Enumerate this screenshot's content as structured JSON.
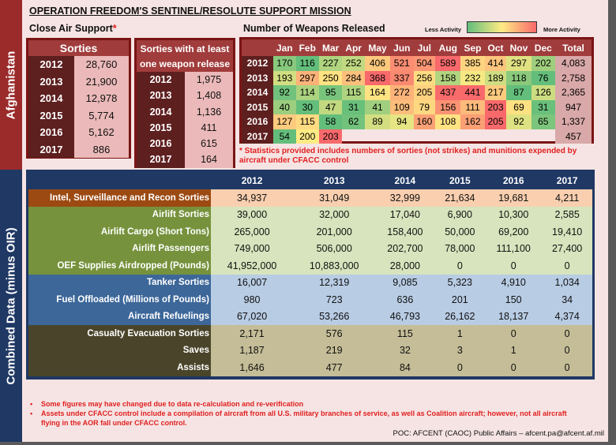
{
  "sidebar": {
    "top_label": "Afghanistan",
    "bottom_label": "Combined Data (minus OIR)"
  },
  "title": "OPERATION FREEDOM'S SENTINEL/RESOLUTE SUPPORT MISSION",
  "close_air_support": {
    "label": "Close Air Support",
    "star": "*"
  },
  "sorties": {
    "header": "Sorties",
    "rows": [
      [
        "2012",
        "28,760"
      ],
      [
        "2013",
        "21,900"
      ],
      [
        "2014",
        "12,978"
      ],
      [
        "2015",
        "5,774"
      ],
      [
        "2016",
        "5,162"
      ],
      [
        "2017",
        "886"
      ]
    ]
  },
  "weapon_sorties": {
    "header": "Sorties with at least one weapon release",
    "rows": [
      [
        "2012",
        "1,975"
      ],
      [
        "2013",
        "1,408"
      ],
      [
        "2014",
        "1,136"
      ],
      [
        "2015",
        "411"
      ],
      [
        "2016",
        "615"
      ],
      [
        "2017",
        "164"
      ]
    ]
  },
  "weapons": {
    "title": "Number of Weapons Released",
    "legend": {
      "less": "Less Activity",
      "more": "More Activity",
      "colors": [
        "#63be7b",
        "#ffeb84",
        "#f8696b"
      ]
    },
    "columns": [
      "Jan",
      "Feb",
      "Mar",
      "Apr",
      "May",
      "Jun",
      "Jul",
      "Aug",
      "Sep",
      "Oct",
      "Nov",
      "Dec",
      "Total"
    ],
    "rows": [
      {
        "year": "2012",
        "values": [
          170,
          116,
          227,
          252,
          406,
          521,
          504,
          589,
          385,
          414,
          297,
          202
        ],
        "total": "4,083"
      },
      {
        "year": "2013",
        "values": [
          193,
          297,
          250,
          284,
          368,
          337,
          256,
          158,
          232,
          189,
          118,
          76
        ],
        "total": "2,758"
      },
      {
        "year": "2014",
        "values": [
          92,
          114,
          95,
          115,
          164,
          272,
          205,
          437,
          441,
          217,
          87,
          126
        ],
        "total": "2,365"
      },
      {
        "year": "2015",
        "values": [
          40,
          30,
          47,
          31,
          41,
          109,
          79,
          156,
          111,
          203,
          69,
          31
        ],
        "total": "947"
      },
      {
        "year": "2016",
        "values": [
          127,
          115,
          58,
          62,
          89,
          94,
          160,
          108,
          162,
          205,
          92,
          65
        ],
        "total": "1,337"
      },
      {
        "year": "2017",
        "values": [
          54,
          200,
          203
        ],
        "total": "457"
      }
    ],
    "footnote": "* Statistics provided includes numbers of sorties (not strikes) and munitions expended by aircraft under CFACC control"
  },
  "combined": {
    "years": [
      "2012",
      "2013",
      "2014",
      "2015",
      "2016",
      "2017"
    ],
    "groups": [
      {
        "label_color": "#9c4a12",
        "value_color": "#f9cfb0",
        "rows": [
          {
            "label": "Intel, Surveillance and Recon Sorties",
            "values": [
              "34,937",
              "31,049",
              "32,999",
              "21,634",
              "19,681",
              "4,211"
            ]
          }
        ]
      },
      {
        "label_color": "#76923c",
        "value_color": "#d7e4bd",
        "rows": [
          {
            "label": "Airlift Sorties",
            "values": [
              "39,000",
              "32,000",
              "17,040",
              "6,900",
              "10,300",
              "2,585"
            ]
          },
          {
            "label": "Airlift Cargo (Short Tons)",
            "values": [
              "265,000",
              "201,000",
              "158,400",
              "50,000",
              "69,200",
              "19,410"
            ]
          },
          {
            "label": "Airlift Passengers",
            "values": [
              "749,000",
              "506,000",
              "202,700",
              "78,000",
              "111,100",
              "27,400"
            ]
          },
          {
            "label": "OEF Supplies Airdropped (Pounds)",
            "values": [
              "41,952,000",
              "10,883,000",
              "28,000",
              "0",
              "0",
              "0"
            ]
          }
        ]
      },
      {
        "label_color": "#3d6799",
        "value_color": "#b8cce4",
        "rows": [
          {
            "label": "Tanker Sorties",
            "values": [
              "16,007",
              "12,319",
              "9,085",
              "5,323",
              "4,910",
              "1,034"
            ]
          },
          {
            "label": "Fuel Offloaded (Millions of Pounds)",
            "values": [
              "980",
              "723",
              "636",
              "201",
              "150",
              "34"
            ]
          },
          {
            "label": "Aircraft Refuelings",
            "values": [
              "67,020",
              "53,266",
              "46,793",
              "26,162",
              "18,137",
              "4,374"
            ]
          }
        ]
      },
      {
        "label_color": "#4a452a",
        "value_color": "#c4bd97",
        "rows": [
          {
            "label": "Casualty Evacuation Sorties",
            "values": [
              "2,171",
              "576",
              "115",
              "1",
              "0",
              "0"
            ]
          },
          {
            "label": "Saves",
            "values": [
              "1,187",
              "219",
              "32",
              "3",
              "1",
              "0"
            ]
          },
          {
            "label": "Assists",
            "values": [
              "1,646",
              "477",
              "84",
              "0",
              "0",
              "0"
            ]
          }
        ]
      }
    ]
  },
  "notes": [
    "Some figures may have changed due to data re-calculation and re-verification",
    "Assets under CFACC control include a compilation of aircraft from all U.S.  military branches of service, as well as Coalition aircraft; however, not all aircraft flying in the AOR fall under CFACC control."
  ],
  "poc": "POC:  AFCENT (CAOC) Public Affairs – afcent.pa@afcent.af.mil"
}
